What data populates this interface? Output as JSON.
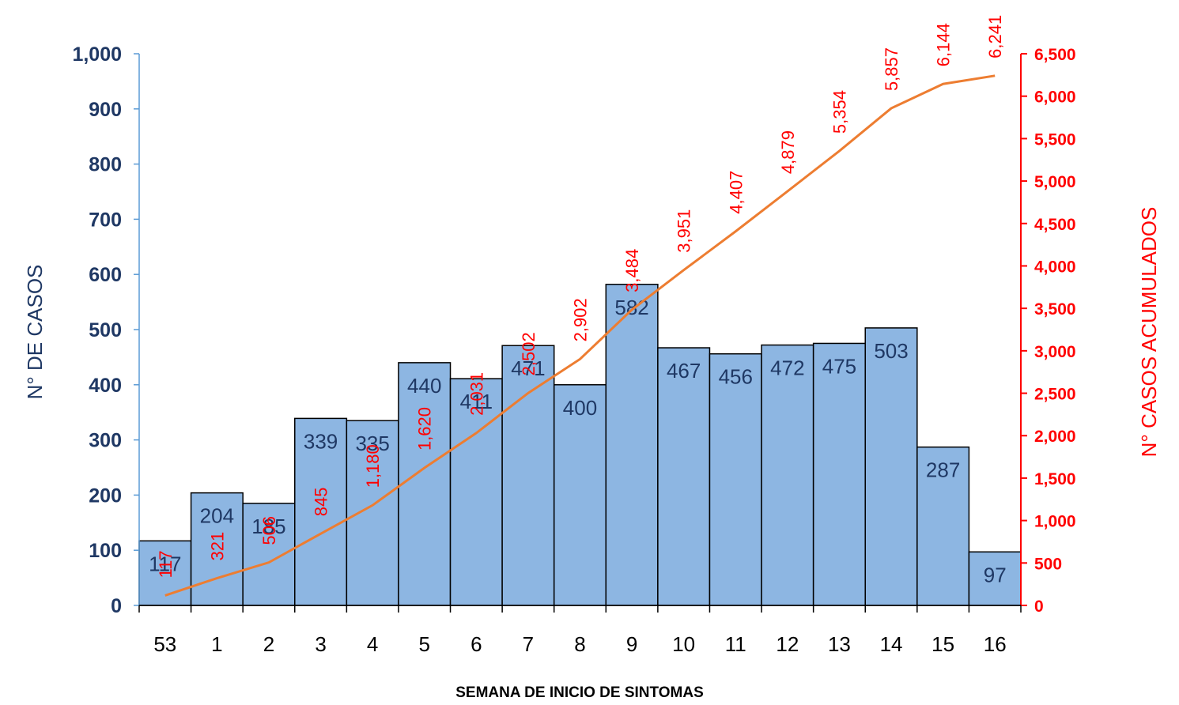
{
  "chart_data": {
    "type": "bar",
    "categories": [
      "53",
      "1",
      "2",
      "3",
      "4",
      "5",
      "6",
      "7",
      "8",
      "9",
      "10",
      "11",
      "12",
      "13",
      "14",
      "15",
      "16"
    ],
    "series": [
      {
        "type": "bar",
        "axis": "left",
        "values": [
          117,
          204,
          185,
          339,
          335,
          440,
          411,
          471,
          400,
          582,
          467,
          456,
          472,
          475,
          503,
          287,
          97
        ],
        "labels": [
          "117",
          "204",
          "185",
          "339",
          "335",
          "440",
          "411",
          "471",
          "400",
          "582",
          "467",
          "456",
          "472",
          "475",
          "503",
          "287",
          "97"
        ],
        "color": "#8DB6E2"
      },
      {
        "type": "line",
        "axis": "right",
        "values": [
          117,
          321,
          506,
          845,
          1180,
          1620,
          2031,
          2502,
          2902,
          3484,
          3951,
          4407,
          4879,
          5354,
          5857,
          6144,
          6241
        ],
        "labels": [
          "117",
          "321",
          "506",
          "845",
          "1,180",
          "1,620",
          "2,031",
          "2,502",
          "2,902",
          "3,484",
          "3,951",
          "4,407",
          "4,879",
          "5,354",
          "5,857",
          "6,144",
          "6,241"
        ],
        "color": "#ED7D31"
      }
    ],
    "xlabel": "SEMANA DE INICIO DE SINTOMAS",
    "ylabel": "N° DE CASOS",
    "y2label": "N° CASOS ACUMULADOS",
    "ylim": [
      0,
      1000
    ],
    "y2lim": [
      0,
      6500
    ],
    "yticks": [
      "0",
      "100",
      "200",
      "300",
      "400",
      "500",
      "600",
      "700",
      "800",
      "900",
      "1,000"
    ],
    "y2ticks": [
      "0",
      "500",
      "1,000",
      "1,500",
      "2,000",
      "2,500",
      "3,000",
      "3,500",
      "4,000",
      "4,500",
      "5,000",
      "5,500",
      "6,000",
      "6,500"
    ],
    "grid": false,
    "colors": {
      "left_axis": "#1F3864",
      "right_axis": "#FF0000",
      "bar_label": "#1F3864",
      "line_label": "#FF0000"
    }
  }
}
